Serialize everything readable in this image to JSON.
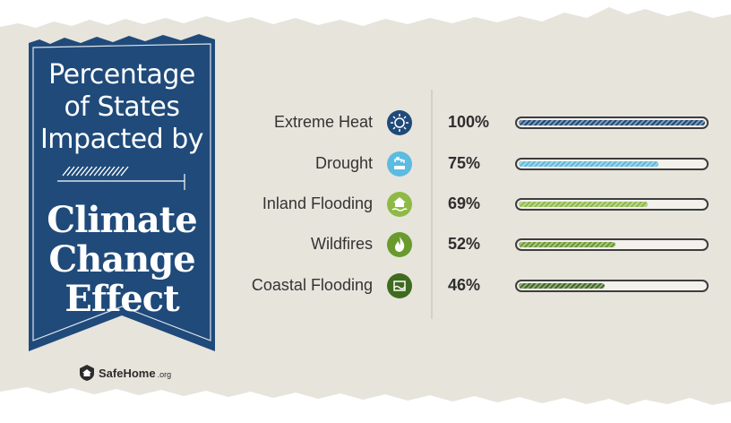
{
  "banner": {
    "subtitle_lines": [
      "Percentage",
      "of States",
      "Impacted by"
    ],
    "title_lines": [
      "Climate",
      "Change",
      "Effect"
    ]
  },
  "brand": {
    "name": "SafeHome",
    "suffix": ".org"
  },
  "colors": {
    "banner": "#1f4a7a",
    "paper": "#e7e4dc",
    "extreme_heat": "#1f4a7a",
    "drought": "#5bbbe1",
    "inland_flooding": "#8dba45",
    "wildfires": "#6a9a2e",
    "coastal_flooding": "#3f6b1f"
  },
  "chart_data": {
    "type": "bar",
    "orientation": "horizontal",
    "title": "Percentage of States Impacted by Climate Change Effect",
    "categories": [
      "Extreme Heat",
      "Drought",
      "Inland Flooding",
      "Wildfires",
      "Coastal Flooding"
    ],
    "values": [
      100,
      75,
      69,
      52,
      46
    ],
    "value_labels": [
      "100%",
      "75%",
      "69%",
      "52%",
      "46%"
    ],
    "icons": [
      "sun-icon",
      "faucet-icon",
      "flooded-house-icon",
      "flame-icon",
      "coastal-wave-icon"
    ],
    "xlim": [
      0,
      100
    ],
    "unit": "%"
  }
}
